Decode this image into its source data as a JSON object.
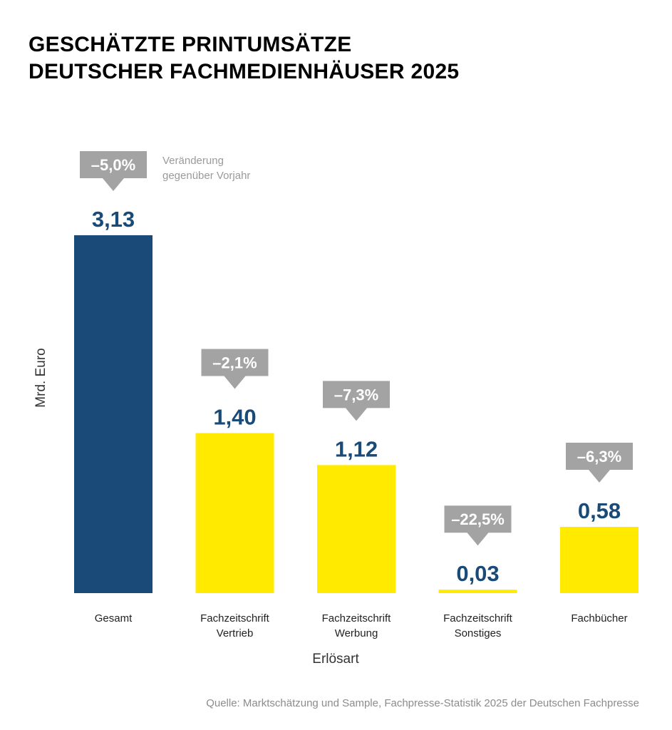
{
  "title_lines": [
    "GESCHÄTZTE PRINTUMSÄTZE",
    "DEUTSCHER FACHMEDIENHÄUSER 2025"
  ],
  "source": "Quelle: Marktschätzung und Sample, Fachpresse-Statistik 2025 der Deutschen Fachpresse",
  "colors": {
    "primary": "#1a4a77",
    "highlight": "#ffea00",
    "badge": "#a3a3a3",
    "text": "#000000"
  },
  "chart_data": {
    "type": "bar",
    "title": "GESCHÄTZTE PRINTUMSÄTZE DEUTSCHER FACHMEDIENHÄUSER 2025",
    "xlabel": "Erlösart",
    "ylabel": "Mrd. Euro",
    "ylim": [
      0,
      3.13
    ],
    "grid": false,
    "legend_note": [
      "Veränderung",
      "gegenüber Vorjahr"
    ],
    "categories": [
      [
        "Gesamt"
      ],
      [
        "Fachzeitschrift",
        "Vertrieb"
      ],
      [
        "Fachzeitschrift",
        "Werbung"
      ],
      [
        "Fachzeitschrift",
        "Sonstiges"
      ],
      [
        "Fachbücher"
      ]
    ],
    "values": [
      3.13,
      1.4,
      1.12,
      0.03,
      0.58
    ],
    "value_labels": [
      "3,13",
      "1,40",
      "1,12",
      "0,03",
      "0,58"
    ],
    "change_labels": [
      "–5,0%",
      "–2,1%",
      "–7,3%",
      "–22,5%",
      "–6,3%"
    ],
    "highlight_index": 0
  }
}
